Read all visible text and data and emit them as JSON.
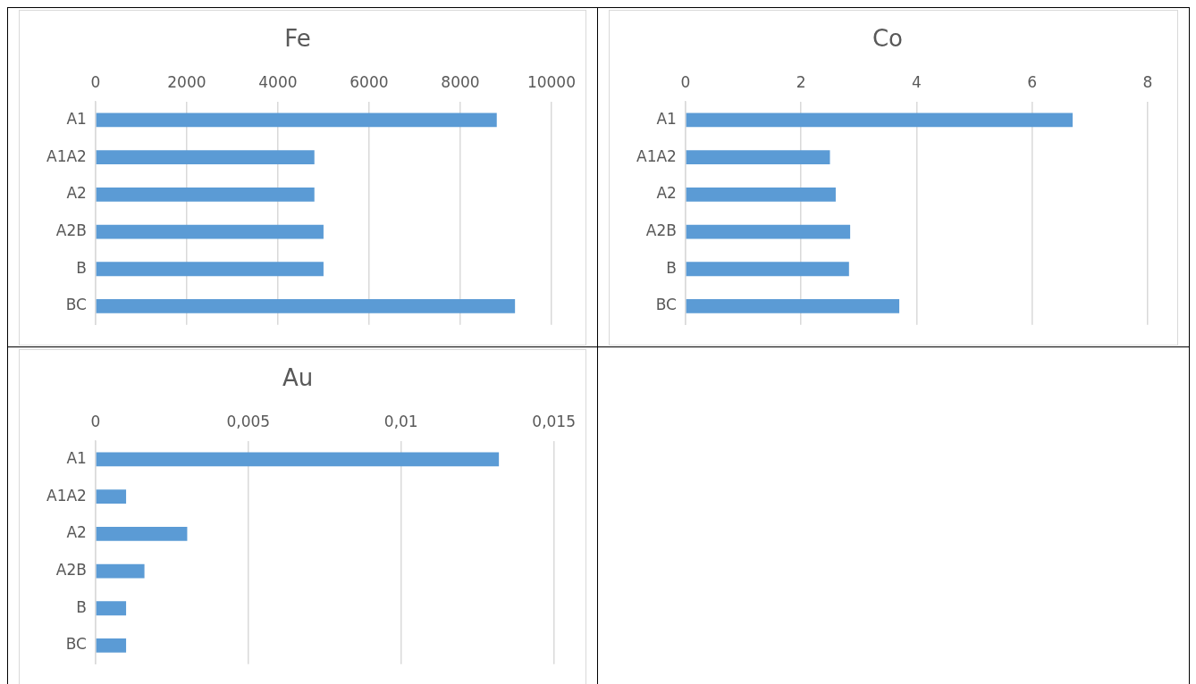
{
  "chart_data": [
    {
      "type": "bar",
      "orientation": "horizontal",
      "title": "Fe",
      "categories": [
        "A1",
        "A1A2",
        "A2",
        "A2B",
        "B",
        "BC"
      ],
      "values": [
        8800,
        4800,
        4800,
        5000,
        5000,
        9200
      ],
      "color": "#5b9bd5",
      "xlim": [
        0,
        10000
      ],
      "xticks": [
        0,
        2000,
        4000,
        6000,
        8000,
        10000
      ],
      "grid": "x"
    },
    {
      "type": "bar",
      "orientation": "horizontal",
      "title": "Co",
      "categories": [
        "A1",
        "A1A2",
        "A2",
        "A2B",
        "B",
        "BC"
      ],
      "values": [
        6.7,
        2.5,
        2.6,
        2.85,
        2.83,
        3.7
      ],
      "color": "#5b9bd5",
      "xlim": [
        0,
        8
      ],
      "xticks": [
        0,
        2,
        4,
        6,
        8
      ],
      "grid": "x"
    },
    {
      "type": "bar",
      "orientation": "horizontal",
      "title": "Au",
      "categories": [
        "A1",
        "A1A2",
        "A2",
        "A2B",
        "B",
        "BC"
      ],
      "values": [
        0.0132,
        0.001,
        0.003,
        0.0016,
        0.001,
        0.001
      ],
      "color": "#5b9bd5",
      "xlim": [
        0,
        0.015
      ],
      "xticks": [
        0,
        {
          "value": 0.005,
          "label": "0,005"
        },
        {
          "value": 0.01,
          "label": "0,01"
        },
        {
          "value": 0.015,
          "label": "0,015"
        }
      ],
      "grid": "x"
    }
  ]
}
